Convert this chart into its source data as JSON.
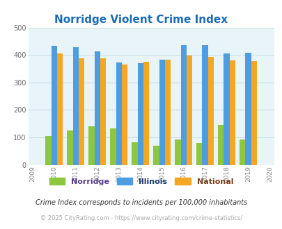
{
  "title": "Norridge Violent Crime Index",
  "years": [
    2009,
    2010,
    2011,
    2012,
    2013,
    2014,
    2015,
    2016,
    2017,
    2018,
    2019,
    2020
  ],
  "bar_years": [
    2010,
    2011,
    2012,
    2013,
    2014,
    2015,
    2016,
    2017,
    2018,
    2019
  ],
  "norridge": [
    105,
    125,
    140,
    132,
    83,
    70,
    93,
    80,
    145,
    93
  ],
  "illinois": [
    433,
    428,
    414,
    373,
    370,
    383,
    437,
    437,
    405,
    408
  ],
  "national": [
    405,
    387,
    387,
    366,
    375,
    383,
    397,
    394,
    381,
    379
  ],
  "norridge_color": "#8dc63f",
  "illinois_color": "#4d9de0",
  "national_color": "#f5a623",
  "bg_color": "#e8f4f8",
  "ylim": [
    0,
    500
  ],
  "yticks": [
    0,
    100,
    200,
    300,
    400,
    500
  ],
  "title_color": "#1b6cb5",
  "title_fontsize": 11,
  "legend_labels": [
    "Norridge",
    "Illinois",
    "National"
  ],
  "legend_text_colors": [
    "#5a3e8c",
    "#1b3a6b",
    "#7a3e1a"
  ],
  "footnote1": "Crime Index corresponds to incidents per 100,000 inhabitants",
  "footnote2": "© 2025 CityRating.com - https://www.cityrating.com/crime-statistics/",
  "footnote1_color": "#333333",
  "footnote2_color": "#aaaaaa",
  "grid_color": "#c8dde5",
  "axis_bg": "#e8f4f8"
}
